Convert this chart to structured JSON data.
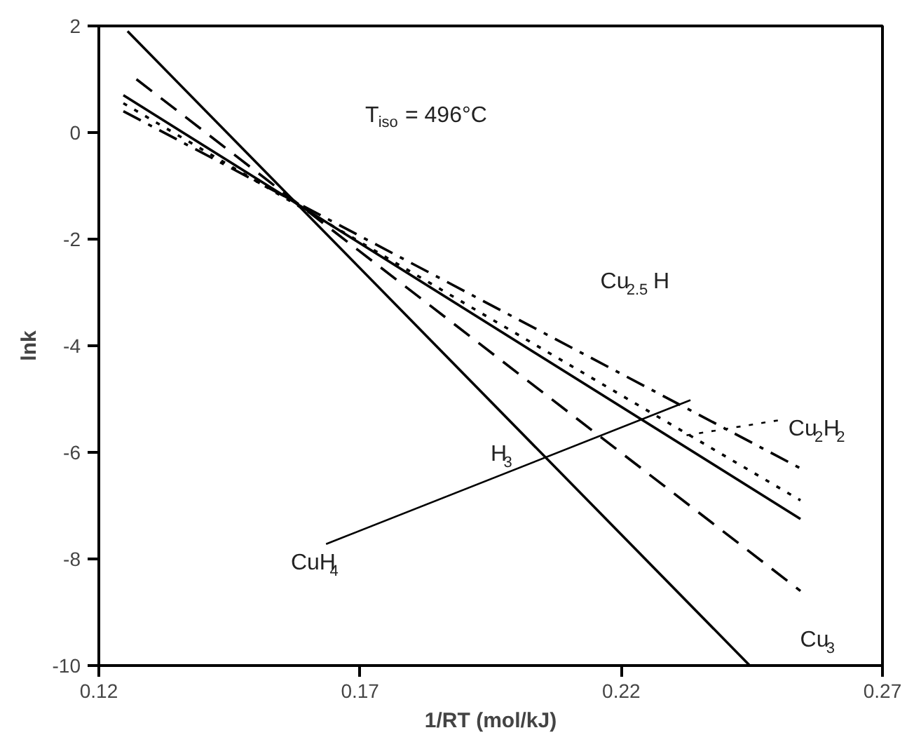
{
  "chart_data": {
    "type": "line",
    "xlabel": "1/RT (mol/kJ)",
    "ylabel": "lnk",
    "xlim": [
      0.12,
      0.27
    ],
    "xticks": [
      0.12,
      0.17,
      0.22,
      0.27
    ],
    "ylim": [
      -10,
      2
    ],
    "yticks": [
      -10,
      -8,
      -6,
      -4,
      -2,
      0,
      2
    ],
    "grid": false,
    "series": [
      {
        "name": "H$_{3}$",
        "color": "#000000",
        "line_style": "solid",
        "x": [
          0.1255,
          0.2446
        ],
        "values": [
          1.9,
          -10
        ]
      },
      {
        "name": "Cu$_{3}$",
        "color": "#000000",
        "line_style": "dashed",
        "x": [
          0.1272,
          0.2543
        ],
        "values": [
          1.0,
          -8.6
        ]
      },
      {
        "name": "CuH$_{4}$",
        "color": "#000000",
        "line_style": "solid",
        "x": [
          0.1247,
          0.2543
        ],
        "values": [
          0.7,
          -7.25
        ]
      },
      {
        "name": "Cu$_{2}$H$_{2}$",
        "color": "#000000",
        "line_style": "dotted",
        "x": [
          0.1247,
          0.2543
        ],
        "values": [
          0.55,
          -6.9
        ]
      },
      {
        "name": "Cu$_{2.5}$H",
        "color": "#000000",
        "line_style": "dashdot",
        "x": [
          0.1247,
          0.2543
        ],
        "values": [
          0.4,
          -6.3
        ]
      }
    ],
    "annotations": [
      "T$_{iso}$ = 496°C"
    ]
  }
}
